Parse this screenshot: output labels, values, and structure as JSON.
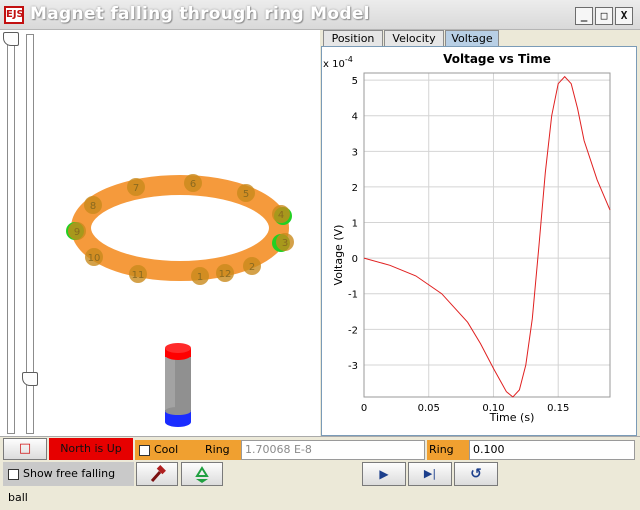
{
  "window": {
    "app_icon_text": "EJS",
    "title": "Magnet falling through ring Model",
    "minimize_glyph": "_",
    "maximize_glyph": "□",
    "close_glyph": "X"
  },
  "tabs": [
    {
      "label": "Position",
      "active": false
    },
    {
      "label": "Velocity",
      "active": false
    },
    {
      "label": "Voltage",
      "active": true
    }
  ],
  "chart_data": {
    "type": "line",
    "title": "Voltage vs Time",
    "xlabel": "Time (s)",
    "ylabel": "Voltage (V)",
    "y_multiplier": "x 10",
    "y_exponent": "-4",
    "xlim": [
      0,
      0.19
    ],
    "ylim": [
      -3.9,
      5.2
    ],
    "x_ticks": [
      0,
      0.05,
      0.1,
      0.15
    ],
    "x_tick_labels": [
      "0",
      "0.05",
      "0.10",
      "0.15"
    ],
    "y_ticks": [
      -3,
      -2,
      -1,
      0,
      1,
      2,
      3,
      4,
      5
    ],
    "y_tick_labels": [
      "-3",
      "-2",
      "-1",
      "0",
      "1",
      "2",
      "3",
      "4",
      "5"
    ],
    "grid": true,
    "line_color": "#e02020",
    "series": [
      {
        "x": [
          0,
          0.02,
          0.04,
          0.06,
          0.08,
          0.09,
          0.1,
          0.11,
          0.115,
          0.12,
          0.125,
          0.13,
          0.135,
          0.14,
          0.145,
          0.15,
          0.155,
          0.16,
          0.165,
          0.17,
          0.18,
          0.19
        ],
        "values": [
          0,
          -0.2,
          -0.5,
          -1.0,
          -1.8,
          -2.4,
          -3.1,
          -3.75,
          -3.9,
          -3.7,
          -3.0,
          -1.7,
          0.3,
          2.4,
          4.0,
          4.9,
          5.1,
          4.9,
          4.2,
          3.3,
          2.2,
          1.35
        ]
      }
    ]
  },
  "ring": {
    "numbers": [
      "1",
      "2",
      "3",
      "4",
      "5",
      "6",
      "7",
      "8",
      "9",
      "10",
      "11",
      "12"
    ],
    "ring_color": "#f59a3c",
    "marker_color": "#c98a1c",
    "side_marker_color": "#22d022"
  },
  "magnet": {
    "north_color": "#ff0000",
    "body_color": "#909090",
    "south_color": "#1a2cff"
  },
  "controls": {
    "stop_glyph": "□",
    "north_label": "North is Up",
    "north_color": "#e60000",
    "cool_ring_label": "Cool ring",
    "ring_rho_label": "Ring ρ=",
    "ring_rho_value": "1.70068 E-8",
    "ring_phi_label": "Ring Φ=",
    "ring_phi_value": "0.100",
    "show_free_fall_label": "Show free falling ball",
    "play_glyph": "▶",
    "step_glyph": "▶|",
    "reset_glyph": "↺"
  }
}
